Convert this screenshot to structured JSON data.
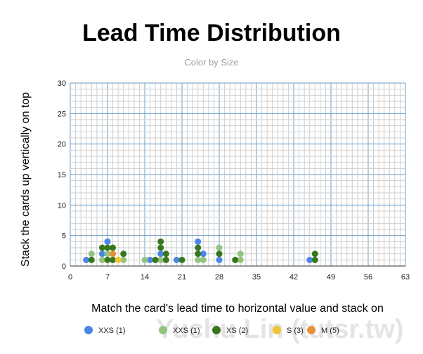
{
  "chart_data": {
    "type": "scatter",
    "title": "Lead Time Distribution",
    "subtitle": "Color by Size",
    "xlabel": "Match the card's lead time to horizontal value and stack on",
    "ylabel": "Stack the cards up vertically on top",
    "xlim": [
      0,
      63
    ],
    "ylim": [
      0,
      30
    ],
    "x_ticks": [
      0,
      7,
      14,
      21,
      28,
      35,
      42,
      49,
      56,
      63
    ],
    "y_ticks": [
      0,
      5,
      10,
      15,
      20,
      25,
      30
    ],
    "grid": true,
    "legend_position": "bottom",
    "series": [
      {
        "name": "XXS (1)",
        "color": "#4a86e8",
        "points": [
          [
            3,
            1
          ],
          [
            6,
            2
          ],
          [
            7,
            4
          ],
          [
            15,
            1
          ],
          [
            17,
            2
          ],
          [
            20,
            1
          ],
          [
            24,
            4
          ],
          [
            25,
            2
          ],
          [
            28,
            1
          ],
          [
            45,
            1
          ]
        ]
      },
      {
        "name": "XXS (1)",
        "color": "#93c47d",
        "points": [
          [
            4,
            2
          ],
          [
            6,
            1
          ],
          [
            7,
            2
          ],
          [
            10,
            1
          ],
          [
            14,
            1
          ],
          [
            17,
            1
          ],
          [
            24,
            1
          ],
          [
            25,
            1
          ],
          [
            28,
            3
          ],
          [
            32,
            2
          ],
          [
            32,
            1
          ]
        ]
      },
      {
        "name": "XS (2)",
        "color": "#38761d",
        "points": [
          [
            4,
            1
          ],
          [
            6,
            3
          ],
          [
            7,
            3
          ],
          [
            7,
            1
          ],
          [
            8,
            3
          ],
          [
            8,
            1
          ],
          [
            10,
            2
          ],
          [
            16,
            1
          ],
          [
            17,
            4
          ],
          [
            17,
            3
          ],
          [
            18,
            2
          ],
          [
            18,
            1
          ],
          [
            21,
            1
          ],
          [
            24,
            3
          ],
          [
            24,
            2
          ],
          [
            28,
            2
          ],
          [
            31,
            1
          ],
          [
            46,
            2
          ],
          [
            46,
            1
          ]
        ]
      },
      {
        "name": "S (3)",
        "color": "#f1c232",
        "points": [
          [
            8,
            2
          ],
          [
            9,
            1
          ]
        ]
      },
      {
        "name": "M (5)",
        "color": "#e69138",
        "points": [
          [
            8,
            2
          ]
        ]
      }
    ]
  },
  "watermark": "Yuchu Lin (tutsr.tw)"
}
